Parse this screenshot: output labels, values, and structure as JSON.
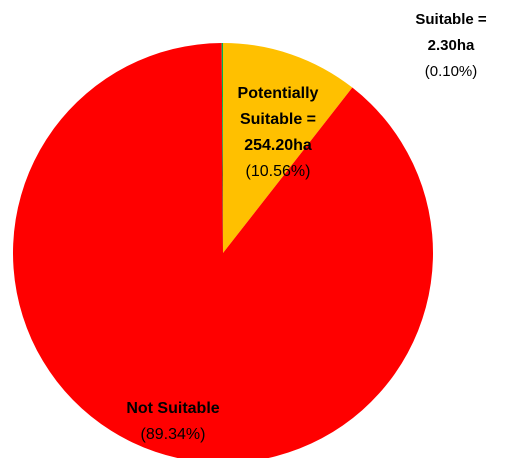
{
  "chart_data": {
    "type": "pie",
    "start": "top",
    "direction": "clockwise",
    "slices": [
      {
        "label": "Potentially Suitable",
        "name_lines": [
          "Potentially",
          "Suitable ="
        ],
        "area_text": "254.20ha",
        "percent_text": "(10.56%)",
        "value": 10.56,
        "color": "#FFC000"
      },
      {
        "label": "Not Suitable",
        "name_lines": [
          "Not Suitable"
        ],
        "area_text": "",
        "percent_text": "(89.34%)",
        "value": 89.34,
        "color": "#FF0000"
      },
      {
        "label": "Suitable",
        "name_lines": [
          "Suitable ="
        ],
        "area_text": "2.30ha",
        "percent_text": "(0.10%)",
        "value": 0.1,
        "color": "#00B050"
      }
    ]
  }
}
